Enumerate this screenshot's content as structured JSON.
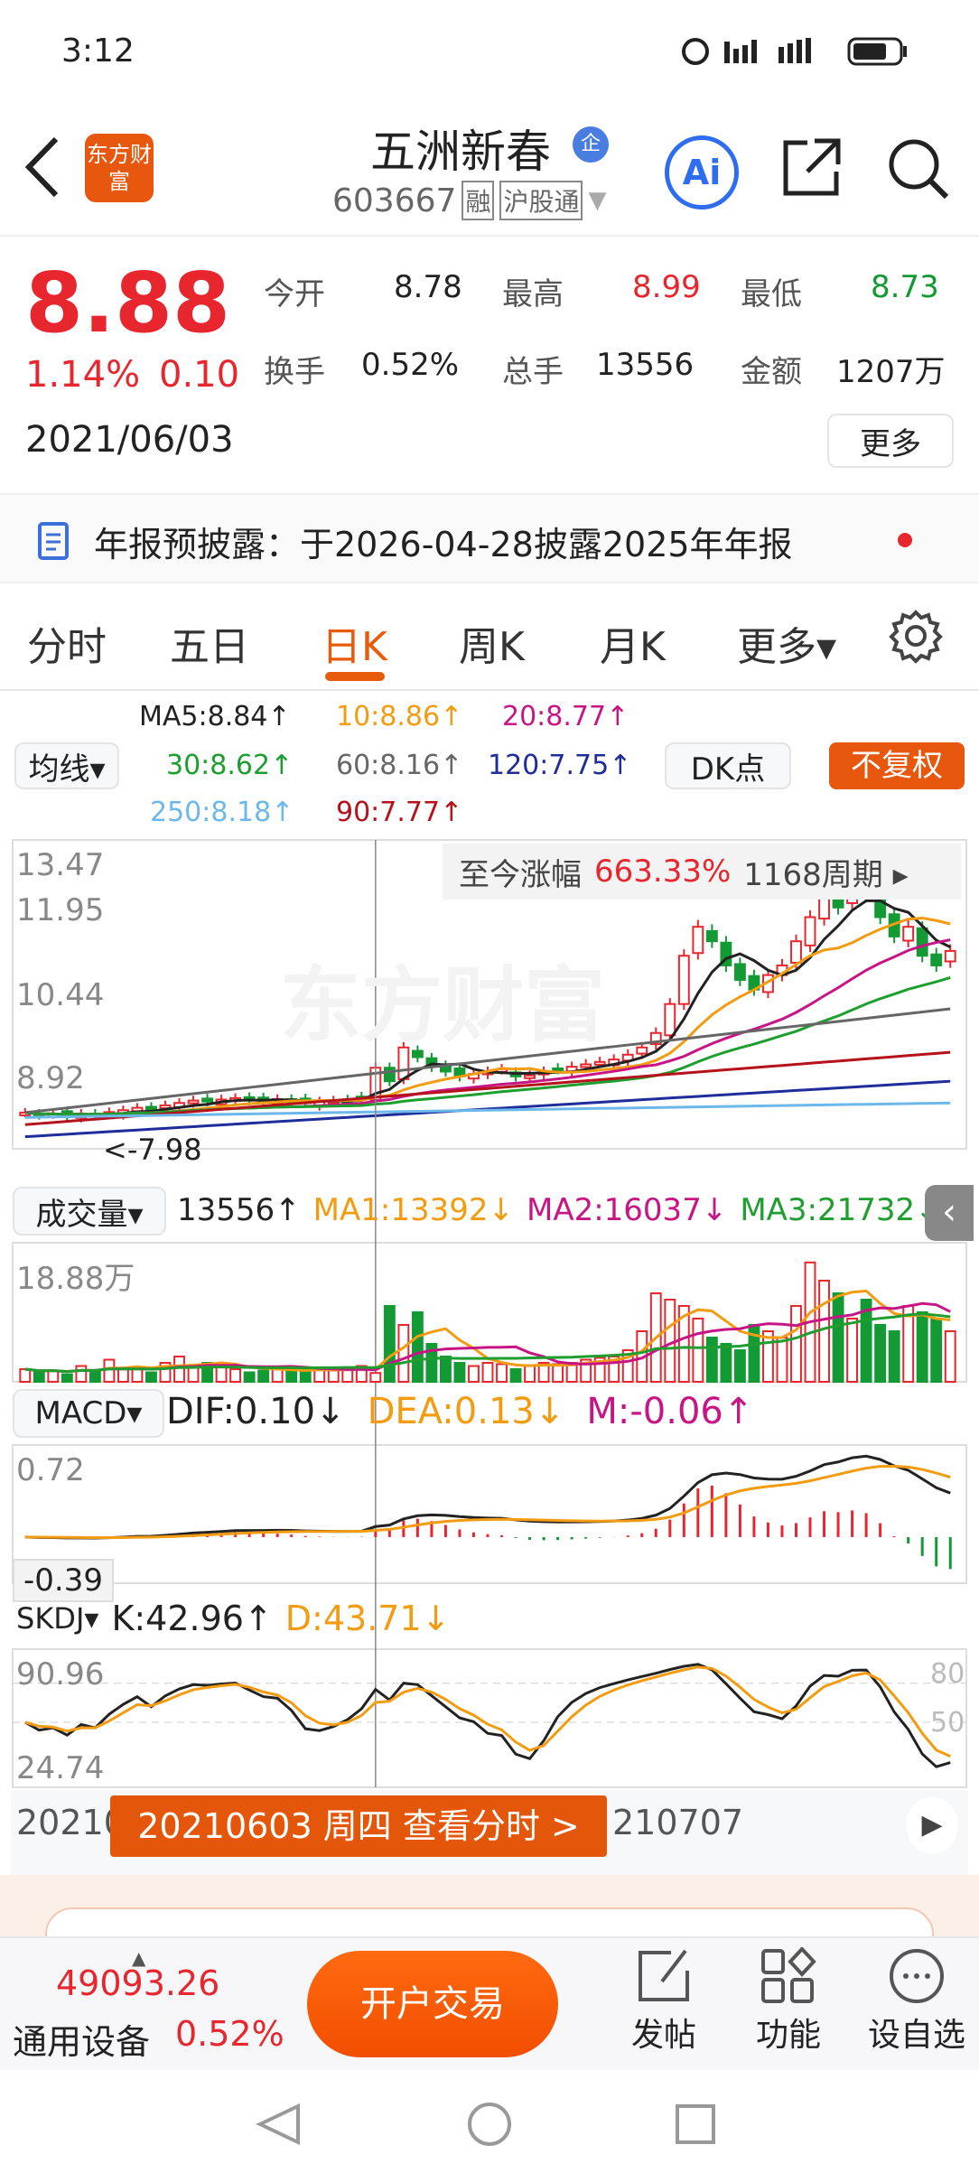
{
  "status": {
    "time": "3:12"
  },
  "header": {
    "logo": "东方财富",
    "title": "五洲新春",
    "badge": "企",
    "code": "603667",
    "tag1": "融",
    "tag2": "沪股通",
    "ai": "Ai"
  },
  "quote": {
    "price": "8.88",
    "pct": "1.14%",
    "chg": "0.10",
    "date": "2021/06/03",
    "open_l": "今开",
    "open": "8.78",
    "high_l": "最高",
    "high": "8.99",
    "low_l": "最低",
    "low": "8.73",
    "turn_l": "换手",
    "turn": "0.52%",
    "vol_l": "总手",
    "vol": "13556",
    "amt_l": "金额",
    "amt": "1207万",
    "more": "更多"
  },
  "notice": {
    "text": "年报预披露：于2026-04-28披露2025年年报"
  },
  "tabs": [
    "分时",
    "五日",
    "日K",
    "周K",
    "月K",
    "更多▾"
  ],
  "active_tab": 2,
  "ma": {
    "btn": "均线▾",
    "ma5": "MA5:8.84↑",
    "ma10": "10:8.86↑",
    "ma20": "20:8.77↑",
    "ma30": "30:8.62↑",
    "ma60": "60:8.16↑",
    "ma120": "120:7.75↑",
    "ma250": "250:8.18↑",
    "ma90": "90:7.77↑",
    "dk": "DK点",
    "fq": "不复权"
  },
  "kline": {
    "y_labels": [
      "13.47",
      "11.95",
      "10.44",
      "8.92"
    ],
    "gain_l": "至今涨幅",
    "gain": "663.33%",
    "period": "1168周期 ▸",
    "low_mark": "<-7.98",
    "watermark": "东方财富",
    "closes": [
      7.95,
      7.9,
      7.92,
      7.88,
      7.93,
      7.9,
      7.96,
      8.0,
      8.05,
      7.98,
      8.1,
      8.15,
      8.2,
      8.18,
      8.22,
      8.25,
      8.2,
      8.18,
      8.23,
      8.2,
      8.15,
      8.18,
      8.2,
      8.22,
      8.25,
      8.88,
      8.6,
      9.3,
      9.1,
      8.9,
      8.8,
      8.7,
      8.75,
      8.8,
      8.85,
      8.7,
      8.72,
      8.8,
      8.85,
      8.9,
      8.95,
      9.0,
      9.05,
      9.15,
      9.3,
      9.6,
      10.2,
      11.2,
      11.8,
      11.5,
      11.0,
      10.7,
      10.5,
      10.8,
      11.0,
      11.5,
      12.0,
      12.4,
      12.2,
      12.6,
      12.5,
      12.0,
      11.6,
      11.8,
      11.2,
      11.0,
      11.3
    ],
    "crosshair_index": 25
  },
  "volume": {
    "btn": "成交量▾",
    "v": "13556↑",
    "ma1": "MA1:13392↓",
    "ma2": "MA2:16037↓",
    "ma3": "MA3:21732↓",
    "y_label": "18.88万",
    "values": [
      2,
      1.5,
      1.8,
      1.2,
      2.5,
      1.8,
      3.5,
      2,
      2.2,
      1.5,
      3,
      4,
      2.5,
      3,
      2.5,
      2,
      1.5,
      1.8,
      2.2,
      2,
      1.5,
      2,
      1.8,
      2.2,
      2.5,
      1.4,
      12,
      9,
      11,
      6,
      4,
      3,
      2.5,
      3,
      2.8,
      2,
      2.5,
      3,
      2.8,
      3,
      3.5,
      3.8,
      4,
      5,
      8,
      14,
      13,
      12,
      10,
      7,
      6,
      5,
      9,
      8,
      7,
      12,
      18.88,
      16,
      14,
      10,
      13,
      9,
      8,
      12,
      11,
      10,
      8
    ]
  },
  "macd": {
    "btn": "MACD▾",
    "dif": "DIF:0.10↓",
    "dea": "DEA:0.13↓",
    "m": "M:-0.06↑",
    "top": "0.72",
    "bottom": "-0.39"
  },
  "skdj": {
    "btn": "SKDJ▾",
    "k": "K:42.96↑",
    "d": "D:43.71↓",
    "top": "90.96",
    "bottom": "24.74",
    "r80": "80",
    "r50": "50"
  },
  "axis": {
    "start": "20210",
    "end": "210707",
    "popup": "20210603 周四 查看分时 >"
  },
  "bottom": {
    "index": "49093.26",
    "sector": "通用设备",
    "sector_pct": "0.52%",
    "trade": "开户交易",
    "post": "发帖",
    "func": "功能",
    "watch": "设自选"
  },
  "colors": {
    "up": "#e8262e",
    "down": "#149a34",
    "accent": "#e85a0c",
    "ma5": "#222222",
    "ma10": "#f39c12",
    "ma20": "#c71585",
    "ma30": "#1e9e2e",
    "ma60": "#666666",
    "ma120": "#1f2d9b",
    "ma250": "#6cb8ea",
    "ma90": "#b5121b"
  }
}
